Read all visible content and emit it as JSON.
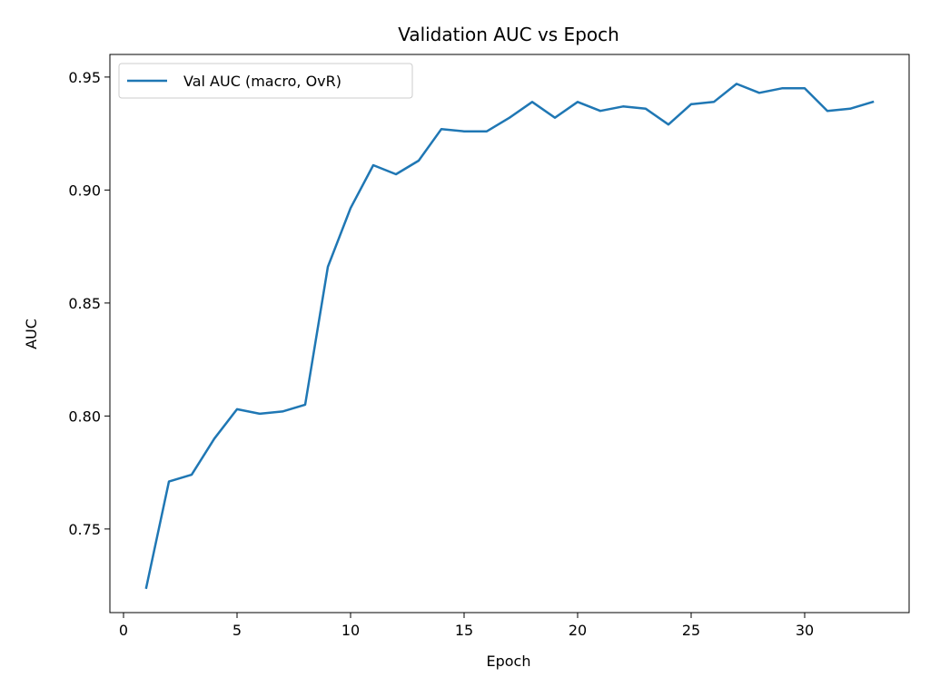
{
  "chart_data": {
    "type": "line",
    "title": "Validation AUC vs Epoch",
    "xlabel": "Epoch",
    "ylabel": "AUC",
    "xlim": [
      -0.6,
      34.6
    ],
    "ylim": [
      0.713,
      0.96
    ],
    "xticks": [
      0,
      5,
      10,
      15,
      20,
      25,
      30
    ],
    "yticks": [
      0.75,
      0.8,
      0.85,
      0.9,
      0.95
    ],
    "ytick_labels": [
      "0.75",
      "0.80",
      "0.85",
      "0.90",
      "0.95"
    ],
    "grid": false,
    "legend_position": "upper-left",
    "series": [
      {
        "name": "Val AUC (macro, OvR)",
        "color": "#1f77b4",
        "x": [
          1,
          2,
          3,
          4,
          5,
          6,
          7,
          8,
          9,
          10,
          11,
          12,
          13,
          14,
          15,
          16,
          17,
          18,
          19,
          20,
          21,
          22,
          23,
          24,
          25,
          26,
          27,
          28,
          29,
          30,
          31,
          32,
          33
        ],
        "y": [
          0.724,
          0.771,
          0.774,
          0.79,
          0.803,
          0.801,
          0.802,
          0.805,
          0.866,
          0.892,
          0.911,
          0.907,
          0.913,
          0.927,
          0.926,
          0.926,
          0.932,
          0.939,
          0.932,
          0.939,
          0.935,
          0.937,
          0.936,
          0.929,
          0.938,
          0.939,
          0.947,
          0.943,
          0.945,
          0.945,
          0.935,
          0.936,
          0.939
        ]
      }
    ]
  }
}
